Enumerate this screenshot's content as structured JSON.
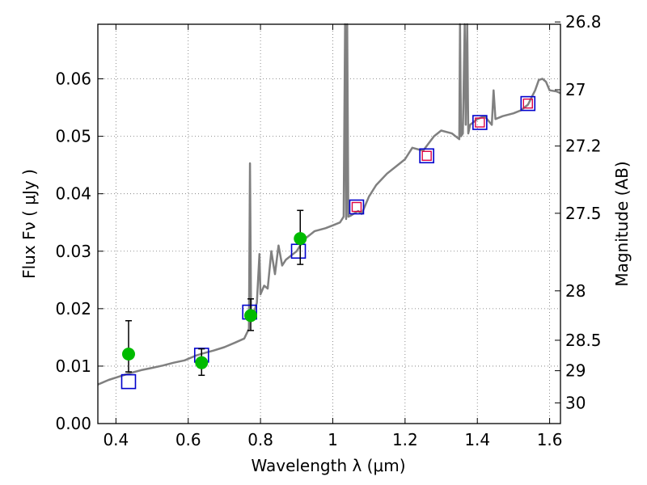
{
  "chart_data": {
    "type": "scatter",
    "xlabel": "Wavelength  λ (μm)",
    "ylabel": "Flux  Fν  ( μJy )",
    "y2label": "Magnitude (AB)",
    "xlim": [
      0.35,
      1.63
    ],
    "ylim": [
      0.0,
      0.0695
    ],
    "x_ticks": [
      0.4,
      0.6,
      0.8,
      1.0,
      1.2,
      1.4,
      1.6
    ],
    "x_tick_labels": [
      "0.4",
      "0.6",
      "0.8",
      "1",
      "1.2",
      "1.4",
      "1.6"
    ],
    "y_ticks": [
      0.0,
      0.01,
      0.02,
      0.03,
      0.04,
      0.05,
      0.06
    ],
    "y_tick_labels": [
      "0.00",
      "0.01",
      "0.02",
      "0.03",
      "0.04",
      "0.05",
      "0.06"
    ],
    "right_axis_ticks": [
      {
        "label": "26.8",
        "flux": 0.0699
      },
      {
        "label": "27",
        "flux": 0.0581
      },
      {
        "label": "27.2",
        "flux": 0.0483
      },
      {
        "label": "27.5",
        "flux": 0.0366
      },
      {
        "label": "28",
        "flux": 0.0231
      },
      {
        "label": "28.5",
        "flux": 0.0145
      },
      {
        "label": "29",
        "flux": 0.0092
      },
      {
        "label": "30",
        "flux": 0.0036
      }
    ],
    "grid": true,
    "colors": {
      "model": "#808080",
      "observed": "#00bb00",
      "errorbar": "#000000",
      "model_band": "#0000cc",
      "model_band_inner": "#dd0044"
    },
    "model_spectrum": {
      "x": [
        0.35,
        0.38,
        0.41,
        0.44,
        0.47,
        0.5,
        0.53,
        0.56,
        0.59,
        0.62,
        0.64,
        0.67,
        0.7,
        0.73,
        0.755,
        0.768,
        0.771,
        0.774,
        0.777,
        0.78,
        0.79,
        0.797,
        0.8,
        0.81,
        0.82,
        0.83,
        0.84,
        0.85,
        0.86,
        0.87,
        0.88,
        0.89,
        0.9,
        0.92,
        0.95,
        0.98,
        1.0,
        1.02,
        1.03,
        1.034,
        1.037,
        1.04,
        1.043,
        1.05,
        1.07,
        1.08,
        1.1,
        1.12,
        1.15,
        1.18,
        1.2,
        1.22,
        1.25,
        1.28,
        1.3,
        1.33,
        1.35,
        1.352,
        1.355,
        1.36,
        1.365,
        1.368,
        1.372,
        1.375,
        1.38,
        1.4,
        1.42,
        1.44,
        1.445,
        1.45,
        1.47,
        1.5,
        1.52,
        1.54,
        1.56,
        1.57,
        1.58,
        1.59,
        1.6,
        1.62,
        1.63
      ],
      "y": [
        0.0068,
        0.0076,
        0.0082,
        0.0088,
        0.0093,
        0.0097,
        0.0101,
        0.0106,
        0.011,
        0.0118,
        0.0122,
        0.0127,
        0.0133,
        0.0141,
        0.0148,
        0.0165,
        0.0453,
        0.0178,
        0.0185,
        0.019,
        0.021,
        0.0295,
        0.0225,
        0.024,
        0.0235,
        0.03,
        0.026,
        0.031,
        0.0275,
        0.0285,
        0.029,
        0.0295,
        0.03,
        0.032,
        0.0335,
        0.034,
        0.0345,
        0.035,
        0.036,
        0.0695,
        0.0356,
        0.0695,
        0.036,
        0.0362,
        0.037,
        0.0365,
        0.0395,
        0.0415,
        0.0435,
        0.045,
        0.046,
        0.048,
        0.0475,
        0.05,
        0.051,
        0.0505,
        0.0495,
        0.0695,
        0.05,
        0.0505,
        0.0695,
        0.052,
        0.0695,
        0.0505,
        0.052,
        0.053,
        0.0535,
        0.052,
        0.058,
        0.053,
        0.0535,
        0.054,
        0.0545,
        0.0555,
        0.058,
        0.0598,
        0.06,
        0.0595,
        0.058,
        0.0578,
        0.0575
      ]
    },
    "observed": [
      {
        "x": 0.435,
        "y": 0.0121,
        "err_low": 0.0031,
        "err_high": 0.0058
      },
      {
        "x": 0.637,
        "y": 0.0106,
        "err_low": 0.0022,
        "err_high": 0.0024
      },
      {
        "x": 0.773,
        "y": 0.0188,
        "err_low": 0.0026,
        "err_high": 0.0029
      },
      {
        "x": 0.91,
        "y": 0.0322,
        "err_low": 0.0045,
        "err_high": 0.0049
      }
    ],
    "model_bands": [
      {
        "x": 0.435,
        "y": 0.0073,
        "inner": false
      },
      {
        "x": 0.637,
        "y": 0.0119,
        "inner": false
      },
      {
        "x": 0.77,
        "y": 0.0194,
        "inner": false
      },
      {
        "x": 0.905,
        "y": 0.03,
        "inner": false
      },
      {
        "x": 1.066,
        "y": 0.0377,
        "inner": true
      },
      {
        "x": 1.26,
        "y": 0.0466,
        "inner": true
      },
      {
        "x": 1.407,
        "y": 0.0524,
        "inner": true
      },
      {
        "x": 1.54,
        "y": 0.0557,
        "inner": true
      }
    ]
  }
}
